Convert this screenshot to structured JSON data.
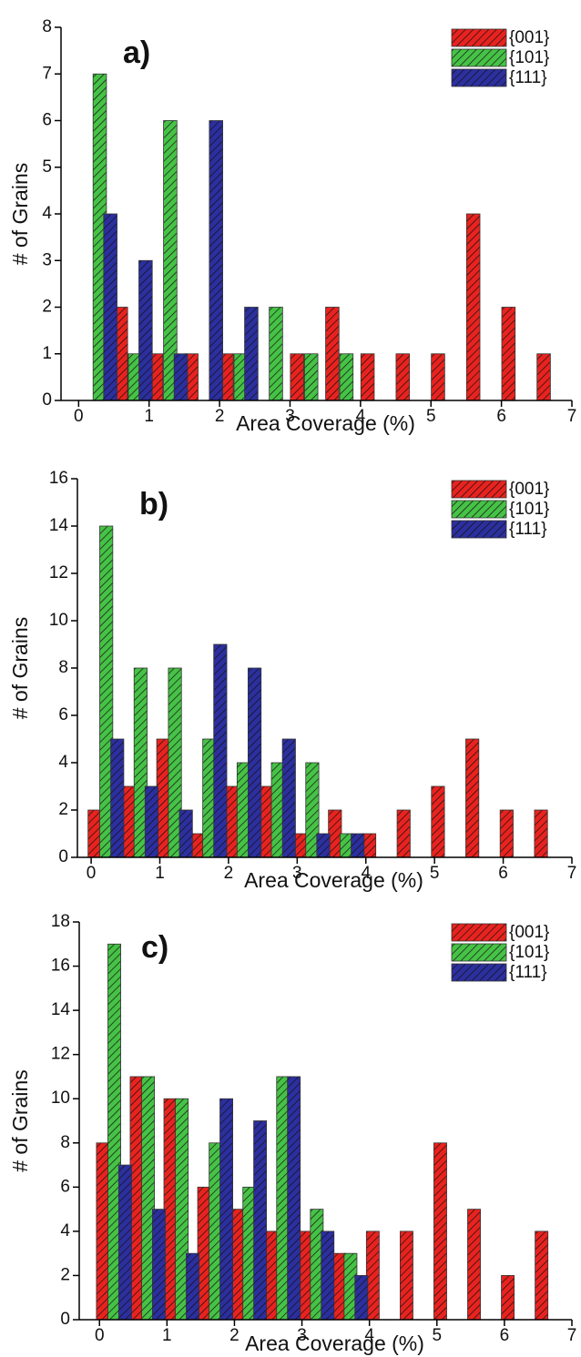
{
  "chart_data": [
    {
      "type": "bar",
      "annotation": "a)",
      "xlabel": "Area Coverage (%)",
      "ylabel": "# of Grains",
      "xlim": [
        -0.25,
        7
      ],
      "ylim": [
        0,
        8
      ],
      "xticks": [
        0,
        1,
        2,
        3,
        4,
        5,
        6,
        7
      ],
      "yticks": [
        0,
        1,
        2,
        3,
        4,
        5,
        6,
        7,
        8
      ],
      "legend": "upper right",
      "series": [
        {
          "name": "{001}",
          "color": "#e8231f",
          "x": [
            0.6,
            1.1,
            1.6,
            2.1,
            3.1,
            3.6,
            4.1,
            4.6,
            5.1,
            5.6,
            6.1,
            6.6
          ],
          "values": [
            2,
            1,
            1,
            1,
            1,
            2,
            1,
            1,
            1,
            4,
            2,
            1
          ]
        },
        {
          "name": "{101}",
          "color": "#46c246",
          "x": [
            0.3,
            0.8,
            1.3,
            2.3,
            2.8,
            3.3,
            3.8
          ],
          "values": [
            7,
            1,
            6,
            1,
            2,
            1,
            1
          ]
        },
        {
          "name": "{111}",
          "color": "#2c2f9e",
          "x": [
            0.45,
            0.95,
            1.45,
            1.95,
            2.45
          ],
          "values": [
            4,
            3,
            1,
            6,
            2
          ]
        }
      ]
    },
    {
      "type": "bar",
      "annotation": "b)",
      "xlabel": "Area Coverage (%)",
      "ylabel": "# of Grains",
      "xlim": [
        -0.2,
        7
      ],
      "ylim": [
        0,
        16
      ],
      "xticks": [
        0,
        1,
        2,
        3,
        4,
        5,
        6,
        7
      ],
      "yticks": [
        0,
        2,
        4,
        6,
        8,
        10,
        12,
        14,
        16
      ],
      "legend": "upper right",
      "series": [
        {
          "name": "{001}",
          "color": "#e8231f",
          "x": [
            0.05,
            0.55,
            1.05,
            1.55,
            2.05,
            2.55,
            3.05,
            3.55,
            4.05,
            4.55,
            5.05,
            5.55,
            6.05,
            6.55
          ],
          "values": [
            2,
            3,
            5,
            1,
            3,
            3,
            1,
            2,
            1,
            2,
            3,
            5,
            2,
            2
          ]
        },
        {
          "name": "{101}",
          "color": "#46c246",
          "x": [
            0.22,
            0.72,
            1.22,
            1.72,
            2.22,
            2.72,
            3.22,
            3.72
          ],
          "values": [
            14,
            8,
            8,
            5,
            4,
            4,
            4,
            1
          ]
        },
        {
          "name": "{111}",
          "color": "#2c2f9e",
          "x": [
            0.38,
            0.88,
            1.38,
            1.88,
            2.38,
            2.88,
            3.38,
            3.88
          ],
          "values": [
            5,
            3,
            2,
            9,
            8,
            5,
            1,
            1
          ]
        }
      ]
    },
    {
      "type": "bar",
      "annotation": "c)",
      "xlabel": "Area Coverage (%)",
      "ylabel": "# of Grains",
      "xlim": [
        -0.3,
        7
      ],
      "ylim": [
        0,
        18
      ],
      "xticks": [
        0,
        1,
        2,
        3,
        4,
        5,
        6,
        7
      ],
      "yticks": [
        0,
        2,
        4,
        6,
        8,
        10,
        12,
        14,
        16,
        18
      ],
      "legend": "upper right",
      "series": [
        {
          "name": "{001}",
          "color": "#e8231f",
          "x": [
            0.05,
            0.55,
            1.05,
            1.55,
            2.05,
            2.55,
            3.05,
            3.55,
            4.05,
            4.55,
            5.05,
            5.55,
            6.05,
            6.55
          ],
          "values": [
            8,
            11,
            10,
            6,
            5,
            4,
            4,
            3,
            4,
            4,
            8,
            5,
            2,
            4
          ]
        },
        {
          "name": "{101}",
          "color": "#46c246",
          "x": [
            0.22,
            0.72,
            1.22,
            1.72,
            2.22,
            2.72,
            3.22,
            3.72
          ],
          "values": [
            17,
            11,
            10,
            8,
            6,
            11,
            5,
            3
          ]
        },
        {
          "name": "{111}",
          "color": "#2c2f9e",
          "x": [
            0.38,
            0.88,
            1.38,
            1.88,
            2.38,
            2.88,
            3.38,
            3.88
          ],
          "values": [
            7,
            5,
            3,
            10,
            9,
            11,
            4,
            2
          ]
        }
      ]
    }
  ]
}
